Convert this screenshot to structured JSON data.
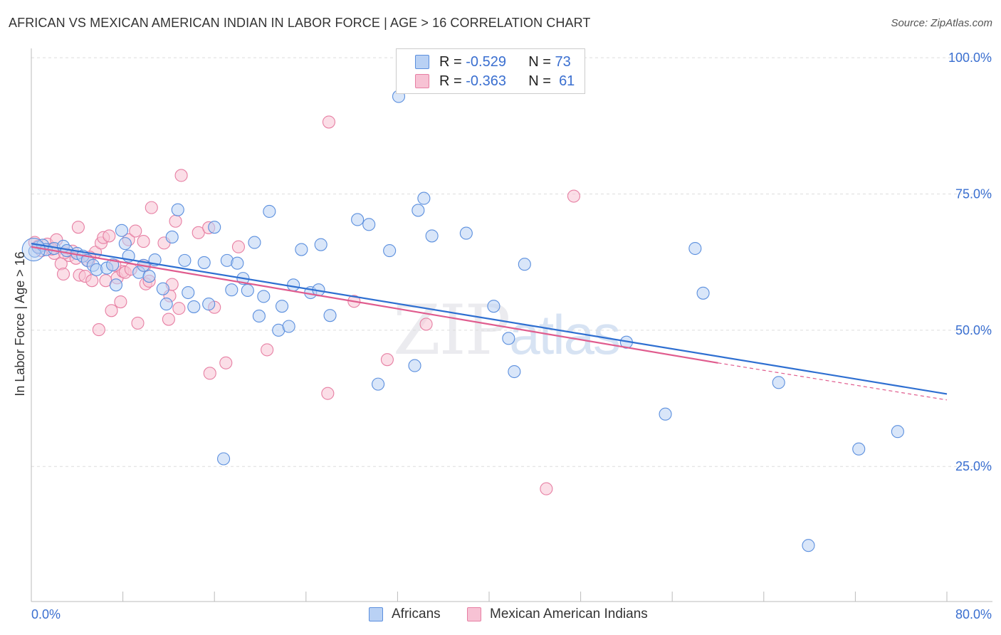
{
  "title": "AFRICAN VS MEXICAN AMERICAN INDIAN IN LABOR FORCE | AGE > 16 CORRELATION CHART",
  "source": "Source: ZipAtlas.com",
  "watermark": {
    "main": "ZIP",
    "suffix": "atlas"
  },
  "colors": {
    "africans": "#5b8fde",
    "africans_fill": "#b9d1f4",
    "africans_line": "#2e6fd1",
    "mexican": "#e77fa3",
    "mexican_fill": "#f7c2d4",
    "mexican_line": "#e05c8e",
    "axis_text": "#3a6fd0"
  },
  "legend": {
    "rows": [
      {
        "r_label": "R = ",
        "r_value": "-0.529",
        "n_label": "N = ",
        "n_value": "73"
      },
      {
        "r_label": "R = ",
        "r_value": "-0.363",
        "n_label": "N = ",
        "n_value": "61"
      }
    ]
  },
  "bottom_legend": {
    "africans": "Africans",
    "mexican": "Mexican American Indians"
  },
  "chart_data": {
    "type": "scatter",
    "title": "AFRICAN VS MEXICAN AMERICAN INDIAN IN LABOR FORCE | AGE > 16 CORRELATION CHART",
    "xlabel": "",
    "ylabel": "In Labor Force | Age > 16",
    "xlim": [
      0,
      80
    ],
    "ylim": [
      0,
      105
    ],
    "x_tick_labels": [
      "0.0%",
      "80.0%"
    ],
    "y_ticks": [
      25,
      50,
      75,
      100
    ],
    "y_tick_labels": [
      "25.0%",
      "50.0%",
      "75.0%",
      "100.0%"
    ],
    "grid": true,
    "legend_position": "top-center",
    "series": [
      {
        "name": "Africans",
        "r": -0.529,
        "n": 73,
        "trend": {
          "x0": 0,
          "y0": 65.9,
          "x1": 80,
          "y1": 38.3
        },
        "points": [
          [
            0.3,
            64.5
          ],
          [
            0.6,
            65.2
          ],
          [
            1.0,
            65.6
          ],
          [
            1.3,
            64.8
          ],
          [
            2.0,
            65.0
          ],
          [
            2.8,
            65.4
          ],
          [
            3.1,
            64.6
          ],
          [
            4.0,
            64.1
          ],
          [
            4.5,
            63.6
          ],
          [
            4.9,
            62.8
          ],
          [
            5.4,
            61.9
          ],
          [
            5.7,
            61.1
          ],
          [
            6.6,
            61.4
          ],
          [
            7.1,
            62.0
          ],
          [
            7.4,
            58.3
          ],
          [
            7.9,
            68.3
          ],
          [
            8.2,
            65.9
          ],
          [
            8.5,
            63.6
          ],
          [
            9.4,
            60.6
          ],
          [
            9.8,
            61.9
          ],
          [
            10.3,
            59.9
          ],
          [
            10.8,
            62.9
          ],
          [
            11.5,
            57.6
          ],
          [
            11.8,
            54.8
          ],
          [
            12.3,
            67.1
          ],
          [
            12.8,
            72.1
          ],
          [
            13.4,
            62.8
          ],
          [
            13.7,
            56.9
          ],
          [
            14.2,
            54.3
          ],
          [
            15.1,
            62.4
          ],
          [
            15.5,
            54.8
          ],
          [
            16.0,
            68.9
          ],
          [
            16.8,
            26.4
          ],
          [
            17.1,
            62.8
          ],
          [
            17.5,
            57.4
          ],
          [
            18.0,
            62.3
          ],
          [
            18.5,
            59.5
          ],
          [
            18.9,
            57.3
          ],
          [
            19.5,
            66.1
          ],
          [
            19.9,
            52.6
          ],
          [
            20.3,
            56.2
          ],
          [
            20.8,
            71.8
          ],
          [
            21.6,
            50.0
          ],
          [
            21.9,
            54.4
          ],
          [
            22.5,
            50.7
          ],
          [
            22.9,
            58.3
          ],
          [
            23.6,
            64.8
          ],
          [
            24.4,
            56.9
          ],
          [
            25.1,
            57.4
          ],
          [
            25.3,
            65.7
          ],
          [
            26.1,
            52.7
          ],
          [
            28.5,
            70.3
          ],
          [
            29.5,
            69.4
          ],
          [
            30.3,
            40.1
          ],
          [
            31.3,
            64.6
          ],
          [
            32.1,
            92.9
          ],
          [
            33.5,
            43.5
          ],
          [
            33.8,
            72.0
          ],
          [
            34.3,
            74.2
          ],
          [
            35.0,
            67.3
          ],
          [
            38.0,
            67.8
          ],
          [
            40.4,
            54.4
          ],
          [
            41.7,
            48.5
          ],
          [
            42.2,
            42.4
          ],
          [
            43.1,
            62.1
          ],
          [
            52.0,
            47.8
          ],
          [
            55.4,
            34.6
          ],
          [
            58.0,
            65.0
          ],
          [
            58.7,
            56.8
          ],
          [
            65.3,
            40.4
          ],
          [
            67.9,
            10.5
          ],
          [
            72.3,
            28.2
          ],
          [
            75.7,
            31.4
          ]
        ]
      },
      {
        "name": "Mexican American Indians",
        "r": -0.363,
        "n": 61,
        "trend": {
          "x0": 0,
          "y0": 65.3,
          "x1": 60,
          "y1": 44.0,
          "dash_to_x": 80,
          "dash_to_y": 37.2
        },
        "points": [
          [
            0.3,
            66.1
          ],
          [
            0.6,
            65.4
          ],
          [
            0.9,
            64.6
          ],
          [
            1.4,
            65.8
          ],
          [
            2.0,
            64.1
          ],
          [
            2.2,
            66.6
          ],
          [
            2.6,
            62.2
          ],
          [
            2.8,
            60.3
          ],
          [
            3.3,
            63.7
          ],
          [
            3.6,
            64.5
          ],
          [
            4.1,
            68.9
          ],
          [
            4.2,
            60.1
          ],
          [
            4.7,
            59.9
          ],
          [
            5.0,
            62.7
          ],
          [
            5.3,
            59.1
          ],
          [
            5.6,
            64.3
          ],
          [
            5.9,
            50.1
          ],
          [
            6.1,
            66.0
          ],
          [
            6.3,
            67.0
          ],
          [
            6.5,
            59.1
          ],
          [
            6.8,
            67.3
          ],
          [
            7.0,
            53.6
          ],
          [
            7.5,
            59.6
          ],
          [
            7.8,
            55.2
          ],
          [
            8.0,
            60.8
          ],
          [
            8.2,
            60.6
          ],
          [
            8.5,
            66.6
          ],
          [
            8.7,
            61.2
          ],
          [
            9.1,
            68.2
          ],
          [
            9.3,
            51.3
          ],
          [
            9.8,
            66.3
          ],
          [
            10.0,
            58.5
          ],
          [
            10.3,
            59.0
          ],
          [
            10.5,
            72.5
          ],
          [
            11.6,
            66.0
          ],
          [
            12.0,
            52.0
          ],
          [
            12.1,
            56.3
          ],
          [
            12.3,
            58.4
          ],
          [
            12.6,
            70.0
          ],
          [
            12.9,
            54.0
          ],
          [
            13.1,
            78.4
          ],
          [
            14.6,
            67.9
          ],
          [
            15.5,
            68.8
          ],
          [
            15.6,
            42.1
          ],
          [
            16.0,
            54.2
          ],
          [
            17.0,
            44.0
          ],
          [
            18.1,
            65.3
          ],
          [
            20.6,
            46.4
          ],
          [
            25.9,
            38.4
          ],
          [
            26.0,
            88.2
          ],
          [
            28.2,
            55.3
          ],
          [
            31.1,
            44.6
          ],
          [
            34.5,
            51.1
          ],
          [
            45.0,
            20.9
          ],
          [
            47.4,
            74.6
          ],
          [
            1.8,
            64.9
          ],
          [
            3.9,
            63.2
          ],
          [
            5.1,
            63.4
          ],
          [
            7.3,
            61.9
          ],
          [
            9.9,
            61.8
          ],
          [
            2.9,
            64.2
          ]
        ]
      }
    ]
  }
}
